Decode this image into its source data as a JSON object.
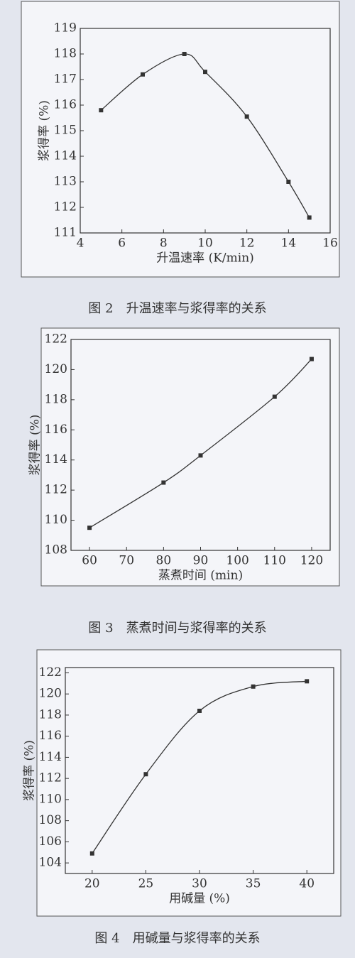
{
  "chart_data": [
    {
      "type": "line",
      "caption": "图 2　升温速率与浆得率的关系",
      "xlabel": "升温速率 (K/min)",
      "ylabel": "浆得率 (%)",
      "x": [
        5,
        7,
        9,
        10,
        12,
        14,
        15
      ],
      "values": [
        115.8,
        117.2,
        118.0,
        117.3,
        115.55,
        113.0,
        111.6
      ],
      "xlim": [
        4,
        16
      ],
      "ylim": [
        111,
        119
      ],
      "xticks": [
        4,
        6,
        8,
        10,
        12,
        14,
        16
      ],
      "yticks": [
        111,
        112,
        113,
        114,
        115,
        116,
        117,
        118,
        119
      ],
      "color": "#333333"
    },
    {
      "type": "line",
      "caption": "图 3　蒸煮时间与浆得率的关系",
      "xlabel": "蒸煮时间 (min)",
      "ylabel": "浆得率 (%)",
      "x": [
        60,
        80,
        90,
        110,
        120
      ],
      "values": [
        109.5,
        112.5,
        114.3,
        118.2,
        120.7
      ],
      "xlim": [
        55,
        125
      ],
      "ylim": [
        108,
        122
      ],
      "xticks": [
        60,
        70,
        80,
        90,
        100,
        110,
        120
      ],
      "yticks": [
        108,
        110,
        112,
        114,
        116,
        118,
        120,
        122
      ],
      "color": "#333333"
    },
    {
      "type": "line",
      "caption": "图 4　用碱量与浆得率的关系",
      "xlabel": "用碱量 (%)",
      "ylabel": "浆得率 (%)",
      "x": [
        20,
        25,
        30,
        35,
        40
      ],
      "values": [
        104.9,
        112.4,
        118.4,
        120.7,
        121.2
      ],
      "xlim": [
        17.5,
        42.5
      ],
      "ylim": [
        103,
        122.5
      ],
      "xticks": [
        20,
        25,
        30,
        35,
        40
      ],
      "yticks": [
        104,
        106,
        108,
        110,
        112,
        114,
        116,
        118,
        120,
        122
      ],
      "color": "#333333"
    }
  ]
}
